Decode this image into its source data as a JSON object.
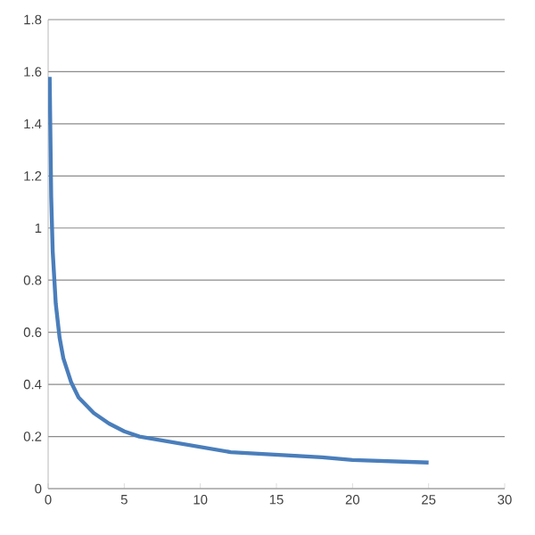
{
  "chart_data": {
    "type": "line",
    "x": [
      0.1,
      0.2,
      0.3,
      0.5,
      0.75,
      1,
      1.5,
      2,
      3,
      4,
      5,
      6,
      8,
      10,
      12,
      15,
      18,
      20,
      25
    ],
    "series": [
      {
        "color": "#4a7ebb",
        "values": [
          1.58,
          1.12,
          0.91,
          0.71,
          0.58,
          0.5,
          0.41,
          0.35,
          0.29,
          0.25,
          0.22,
          0.2,
          0.18,
          0.16,
          0.14,
          0.13,
          0.12,
          0.11,
          0.1
        ]
      }
    ],
    "xlim": [
      0,
      30
    ],
    "ylim": [
      0,
      1.8
    ],
    "xticks": [
      0,
      5,
      10,
      15,
      20,
      25,
      30
    ],
    "yticks": [
      0,
      0.2,
      0.4,
      0.6,
      0.8,
      1,
      1.2,
      1.4,
      1.6,
      1.8
    ],
    "grid": "y",
    "marker": "none",
    "line_style": "solid"
  }
}
